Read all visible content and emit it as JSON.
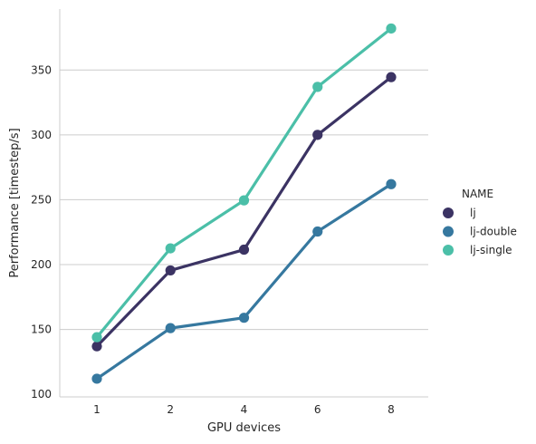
{
  "chart_data": {
    "type": "line",
    "categories": [
      "1",
      "2",
      "4",
      "6",
      "8"
    ],
    "xlabel": "GPU devices",
    "ylabel": "Performance [timestep/s]",
    "ylim": [
      98,
      397
    ],
    "yticks": [
      100,
      150,
      200,
      250,
      300,
      350
    ],
    "grid": "horizontal",
    "legend_title": "NAME",
    "legend_position": "right",
    "series": [
      {
        "name": "lj",
        "color": "#3b3363",
        "values": [
          137,
          195.5,
          211.5,
          300,
          344.5
        ]
      },
      {
        "name": "lj-double",
        "color": "#36789f",
        "values": [
          112,
          151,
          159,
          225.5,
          262
        ]
      },
      {
        "name": "lj-single",
        "color": "#4bbfa8",
        "values": [
          144,
          212.5,
          249.5,
          337,
          382
        ]
      }
    ]
  }
}
